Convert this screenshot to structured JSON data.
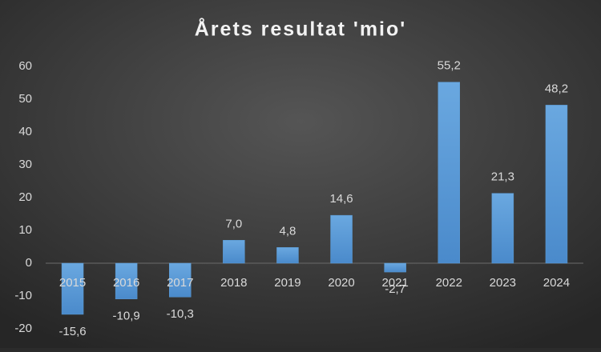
{
  "chart_data": {
    "type": "bar",
    "title": "Årets resultat 'mio'",
    "categories": [
      "2015",
      "2016",
      "2017",
      "2018",
      "2019",
      "2020",
      "2021",
      "2022",
      "2023",
      "2024"
    ],
    "values": [
      -15.6,
      -10.9,
      -10.3,
      7.0,
      4.8,
      14.6,
      -2.7,
      55.2,
      21.3,
      48.2
    ],
    "value_labels": [
      "-15,6",
      "-10,9",
      "-10,3",
      "7,0",
      "4,8",
      "14,6",
      "-2,7",
      "55,2",
      "21,3",
      "48,2"
    ],
    "color": "#5b9bd5",
    "ylim": [
      -20,
      60
    ],
    "yticks": [
      -20,
      -10,
      0,
      10,
      20,
      30,
      40,
      50,
      60
    ],
    "grid": false
  }
}
